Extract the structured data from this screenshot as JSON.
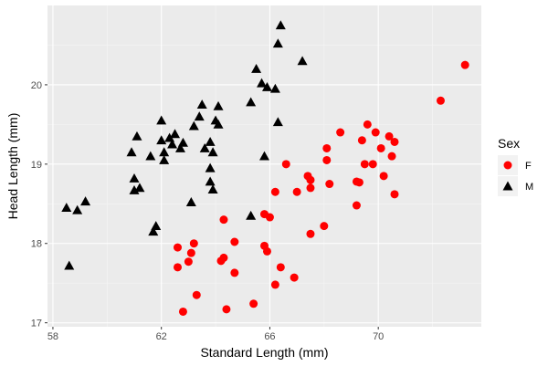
{
  "chart_data": {
    "type": "scatter",
    "title": "",
    "xlabel": "Standard Length (mm)",
    "ylabel": "Head Length (mm)",
    "xlim": [
      57.8,
      73.8
    ],
    "ylim": [
      16.95,
      21.0
    ],
    "x_ticks": [
      58,
      62,
      66,
      70
    ],
    "y_ticks": [
      17,
      18,
      19,
      20
    ],
    "grid": true,
    "legend": {
      "title": "Sex",
      "position": "right"
    },
    "series": [
      {
        "name": "F",
        "marker": "circle",
        "color": "#ff0000",
        "points": [
          [
            72.3,
            19.8
          ],
          [
            73.2,
            20.25
          ],
          [
            69.6,
            19.5
          ],
          [
            69.9,
            19.4
          ],
          [
            70.4,
            19.35
          ],
          [
            70.6,
            19.28
          ],
          [
            69.4,
            19.3
          ],
          [
            70.1,
            19.2
          ],
          [
            68.1,
            19.2
          ],
          [
            68.6,
            19.4
          ],
          [
            70.5,
            19.1
          ],
          [
            69.8,
            19.0
          ],
          [
            69.5,
            19.0
          ],
          [
            66.6,
            19.0
          ],
          [
            67.4,
            18.85
          ],
          [
            67.5,
            18.8
          ],
          [
            70.2,
            18.85
          ],
          [
            68.1,
            19.05
          ],
          [
            69.2,
            18.78
          ],
          [
            69.3,
            18.77
          ],
          [
            68.2,
            18.75
          ],
          [
            66.2,
            18.65
          ],
          [
            67.0,
            18.65
          ],
          [
            67.5,
            18.7
          ],
          [
            70.6,
            18.62
          ],
          [
            69.2,
            18.48
          ],
          [
            65.8,
            18.37
          ],
          [
            66.0,
            18.33
          ],
          [
            64.3,
            18.3
          ],
          [
            68.0,
            18.22
          ],
          [
            67.5,
            18.12
          ],
          [
            64.7,
            18.02
          ],
          [
            63.2,
            18.0
          ],
          [
            65.8,
            17.97
          ],
          [
            65.9,
            17.9
          ],
          [
            62.6,
            17.95
          ],
          [
            63.1,
            17.88
          ],
          [
            64.3,
            17.82
          ],
          [
            64.2,
            17.78
          ],
          [
            63.0,
            17.77
          ],
          [
            62.6,
            17.7
          ],
          [
            66.4,
            17.7
          ],
          [
            64.7,
            17.63
          ],
          [
            66.9,
            17.57
          ],
          [
            66.2,
            17.48
          ],
          [
            63.3,
            17.35
          ],
          [
            65.4,
            17.24
          ],
          [
            64.4,
            17.17
          ],
          [
            62.8,
            17.14
          ]
        ]
      },
      {
        "name": "M",
        "marker": "triangle",
        "color": "#000000",
        "points": [
          [
            66.4,
            20.75
          ],
          [
            66.3,
            20.52
          ],
          [
            67.2,
            20.3
          ],
          [
            65.5,
            20.2
          ],
          [
            65.7,
            20.02
          ],
          [
            65.9,
            19.97
          ],
          [
            66.2,
            19.95
          ],
          [
            65.3,
            19.78
          ],
          [
            63.5,
            19.75
          ],
          [
            64.1,
            19.73
          ],
          [
            63.4,
            19.6
          ],
          [
            64.0,
            19.55
          ],
          [
            66.3,
            19.53
          ],
          [
            62.0,
            19.55
          ],
          [
            64.1,
            19.5
          ],
          [
            63.2,
            19.48
          ],
          [
            62.5,
            19.38
          ],
          [
            62.3,
            19.33
          ],
          [
            61.1,
            19.35
          ],
          [
            62.0,
            19.3
          ],
          [
            62.8,
            19.27
          ],
          [
            63.8,
            19.28
          ],
          [
            62.7,
            19.2
          ],
          [
            62.4,
            19.25
          ],
          [
            63.6,
            19.2
          ],
          [
            62.1,
            19.15
          ],
          [
            63.9,
            19.15
          ],
          [
            60.9,
            19.15
          ],
          [
            61.6,
            19.1
          ],
          [
            62.1,
            19.05
          ],
          [
            65.8,
            19.1
          ],
          [
            63.8,
            18.95
          ],
          [
            61.0,
            18.82
          ],
          [
            63.8,
            18.78
          ],
          [
            61.2,
            18.7
          ],
          [
            61.0,
            18.67
          ],
          [
            63.9,
            18.68
          ],
          [
            63.1,
            18.52
          ],
          [
            59.2,
            18.53
          ],
          [
            58.9,
            18.42
          ],
          [
            58.5,
            18.45
          ],
          [
            65.3,
            18.35
          ],
          [
            61.8,
            18.22
          ],
          [
            61.7,
            18.15
          ],
          [
            58.6,
            17.72
          ]
        ]
      }
    ]
  }
}
